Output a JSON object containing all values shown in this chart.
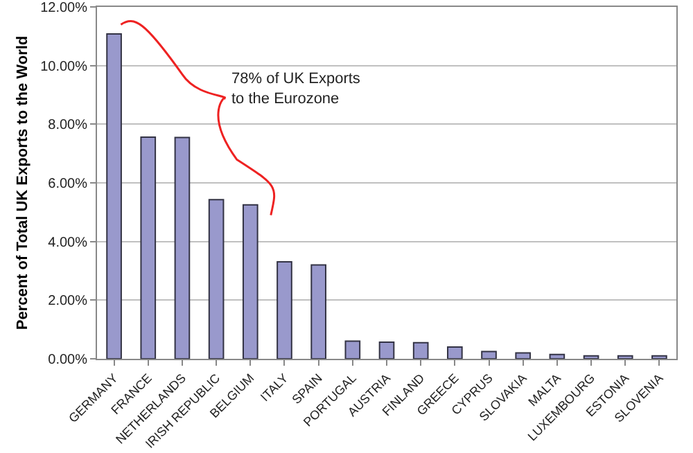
{
  "chart_data": {
    "type": "bar",
    "ylabel": "Percent of Total UK Exports to the World",
    "categories": [
      "GERMANY",
      "FRANCE",
      "NETHERLANDS",
      "IRISH REPUBLIC",
      "BELGIUM",
      "ITALY",
      "SPAIN",
      "PORTUGAL",
      "AUSTRIA",
      "FINLAND",
      "GREECE",
      "CYPRUS",
      "SLOVAKIA",
      "MALTA",
      "LUXEMBOURG",
      "ESTONIA",
      "SLOVENIA"
    ],
    "values": [
      11.08,
      7.56,
      7.55,
      5.43,
      5.25,
      3.31,
      3.2,
      0.6,
      0.57,
      0.55,
      0.4,
      0.25,
      0.2,
      0.15,
      0.1,
      0.1,
      0.1
    ],
    "color": "#9999cc",
    "ylim": [
      0,
      12
    ],
    "yticks": [
      {
        "value": 0,
        "label": "0.00%"
      },
      {
        "value": 2,
        "label": "2.00%"
      },
      {
        "value": 4,
        "label": "4.00%"
      },
      {
        "value": 6,
        "label": "6.00%"
      },
      {
        "value": 8,
        "label": "8.00%"
      },
      {
        "value": 10,
        "label": "10.00%"
      },
      {
        "value": 12,
        "label": "12.00%"
      }
    ],
    "grid": "y",
    "annotations": [
      "78% of UK Exports\nto the Eurozone"
    ]
  }
}
